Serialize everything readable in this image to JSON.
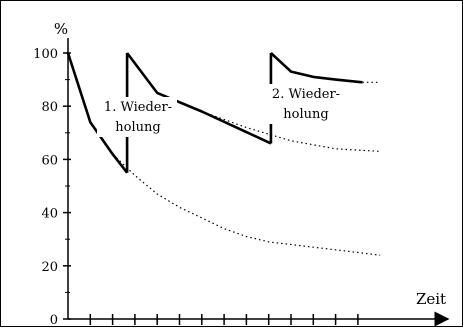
{
  "chart_data": {
    "type": "line",
    "ylabel": "%",
    "xlabel": "Zeit",
    "ylim": [
      0,
      100
    ],
    "yticks": [
      0,
      20,
      40,
      60,
      80,
      100
    ],
    "xlim": [
      0,
      14
    ],
    "xticks": [
      1,
      2,
      3,
      4,
      5,
      6,
      7,
      8,
      9,
      10,
      11,
      12,
      13
    ],
    "grid": false,
    "annotations": [
      {
        "lines": [
          "1. Wieder-",
          "holung"
        ]
      },
      {
        "lines": [
          "2. Wieder-",
          "holung"
        ]
      }
    ],
    "series": [
      {
        "style": "dotted",
        "x": [
          0,
          1,
          2,
          3,
          4,
          5,
          6,
          7,
          8,
          9,
          10,
          11,
          12,
          13,
          14
        ],
        "values": [
          100,
          74,
          62,
          54,
          47,
          42,
          38,
          34,
          31,
          29,
          28,
          27,
          26,
          25,
          24
        ]
      },
      {
        "style": "solid",
        "x": [
          0,
          1,
          2,
          2.65
        ],
        "values": [
          100,
          74,
          62,
          55
        ]
      },
      {
        "style": "dotted",
        "x": [
          2.65,
          4,
          6,
          8,
          10,
          12,
          14
        ],
        "values": [
          100,
          85,
          78,
          72,
          67,
          64,
          63
        ]
      },
      {
        "style": "solid",
        "x": [
          2.65,
          4,
          6,
          9.1
        ],
        "values": [
          100,
          85,
          78,
          66
        ]
      },
      {
        "style": "solid",
        "x": [
          9.1,
          10,
          11,
          12,
          13.2
        ],
        "values": [
          100,
          93,
          91,
          90,
          89
        ]
      },
      {
        "style": "dotted",
        "x": [
          13.2,
          14
        ],
        "values": [
          89,
          89
        ]
      }
    ],
    "jumps": [
      {
        "x": 2.65,
        "from": 55,
        "to": 100
      },
      {
        "x": 9.1,
        "from": 66,
        "to": 100
      }
    ]
  }
}
